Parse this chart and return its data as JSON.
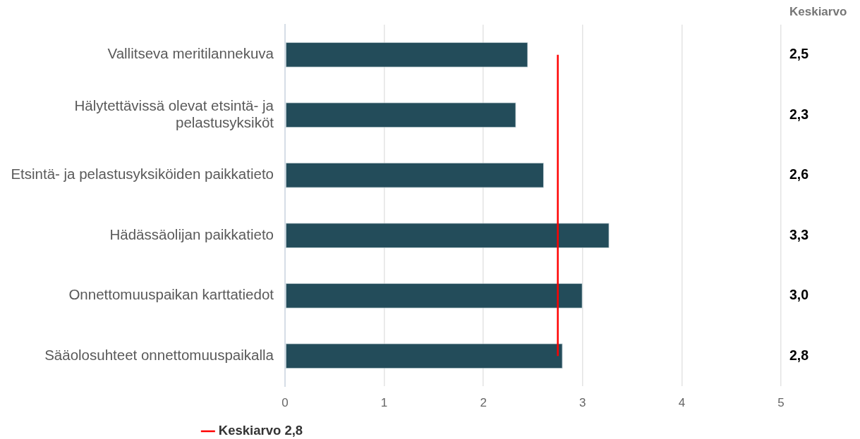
{
  "chart_data": {
    "type": "bar",
    "orientation": "horizontal",
    "categories": [
      "Vallitseva meritilannekuva",
      "Hälytettävissä olevat etsintä- ja pelastusyksiköt",
      "Etsintä- ja pelastusyksiköiden paikkatieto",
      "Hädässäolijan paikkatieto",
      "Onnettomuuspaikan karttatiedot",
      "Sääolosuhteet onnettomuuspaikalla"
    ],
    "values": [
      2.45,
      2.33,
      2.61,
      3.27,
      3.0,
      2.8
    ],
    "color": "#234c5a",
    "value_labels": [
      "2,5",
      "2,3",
      "2,6",
      "3,3",
      "3,0",
      "2,8"
    ],
    "xlim": [
      0,
      5
    ],
    "xticks": [
      0,
      1,
      2,
      3,
      4,
      5
    ],
    "grid": "x",
    "ref_lines": [
      {
        "axis": "x",
        "value": 2.75,
        "label": "Keskiarvo 2,8",
        "color": "#ff0000"
      }
    ],
    "annotations": [
      "Keskiarvo"
    ],
    "legend": "bottom left"
  }
}
